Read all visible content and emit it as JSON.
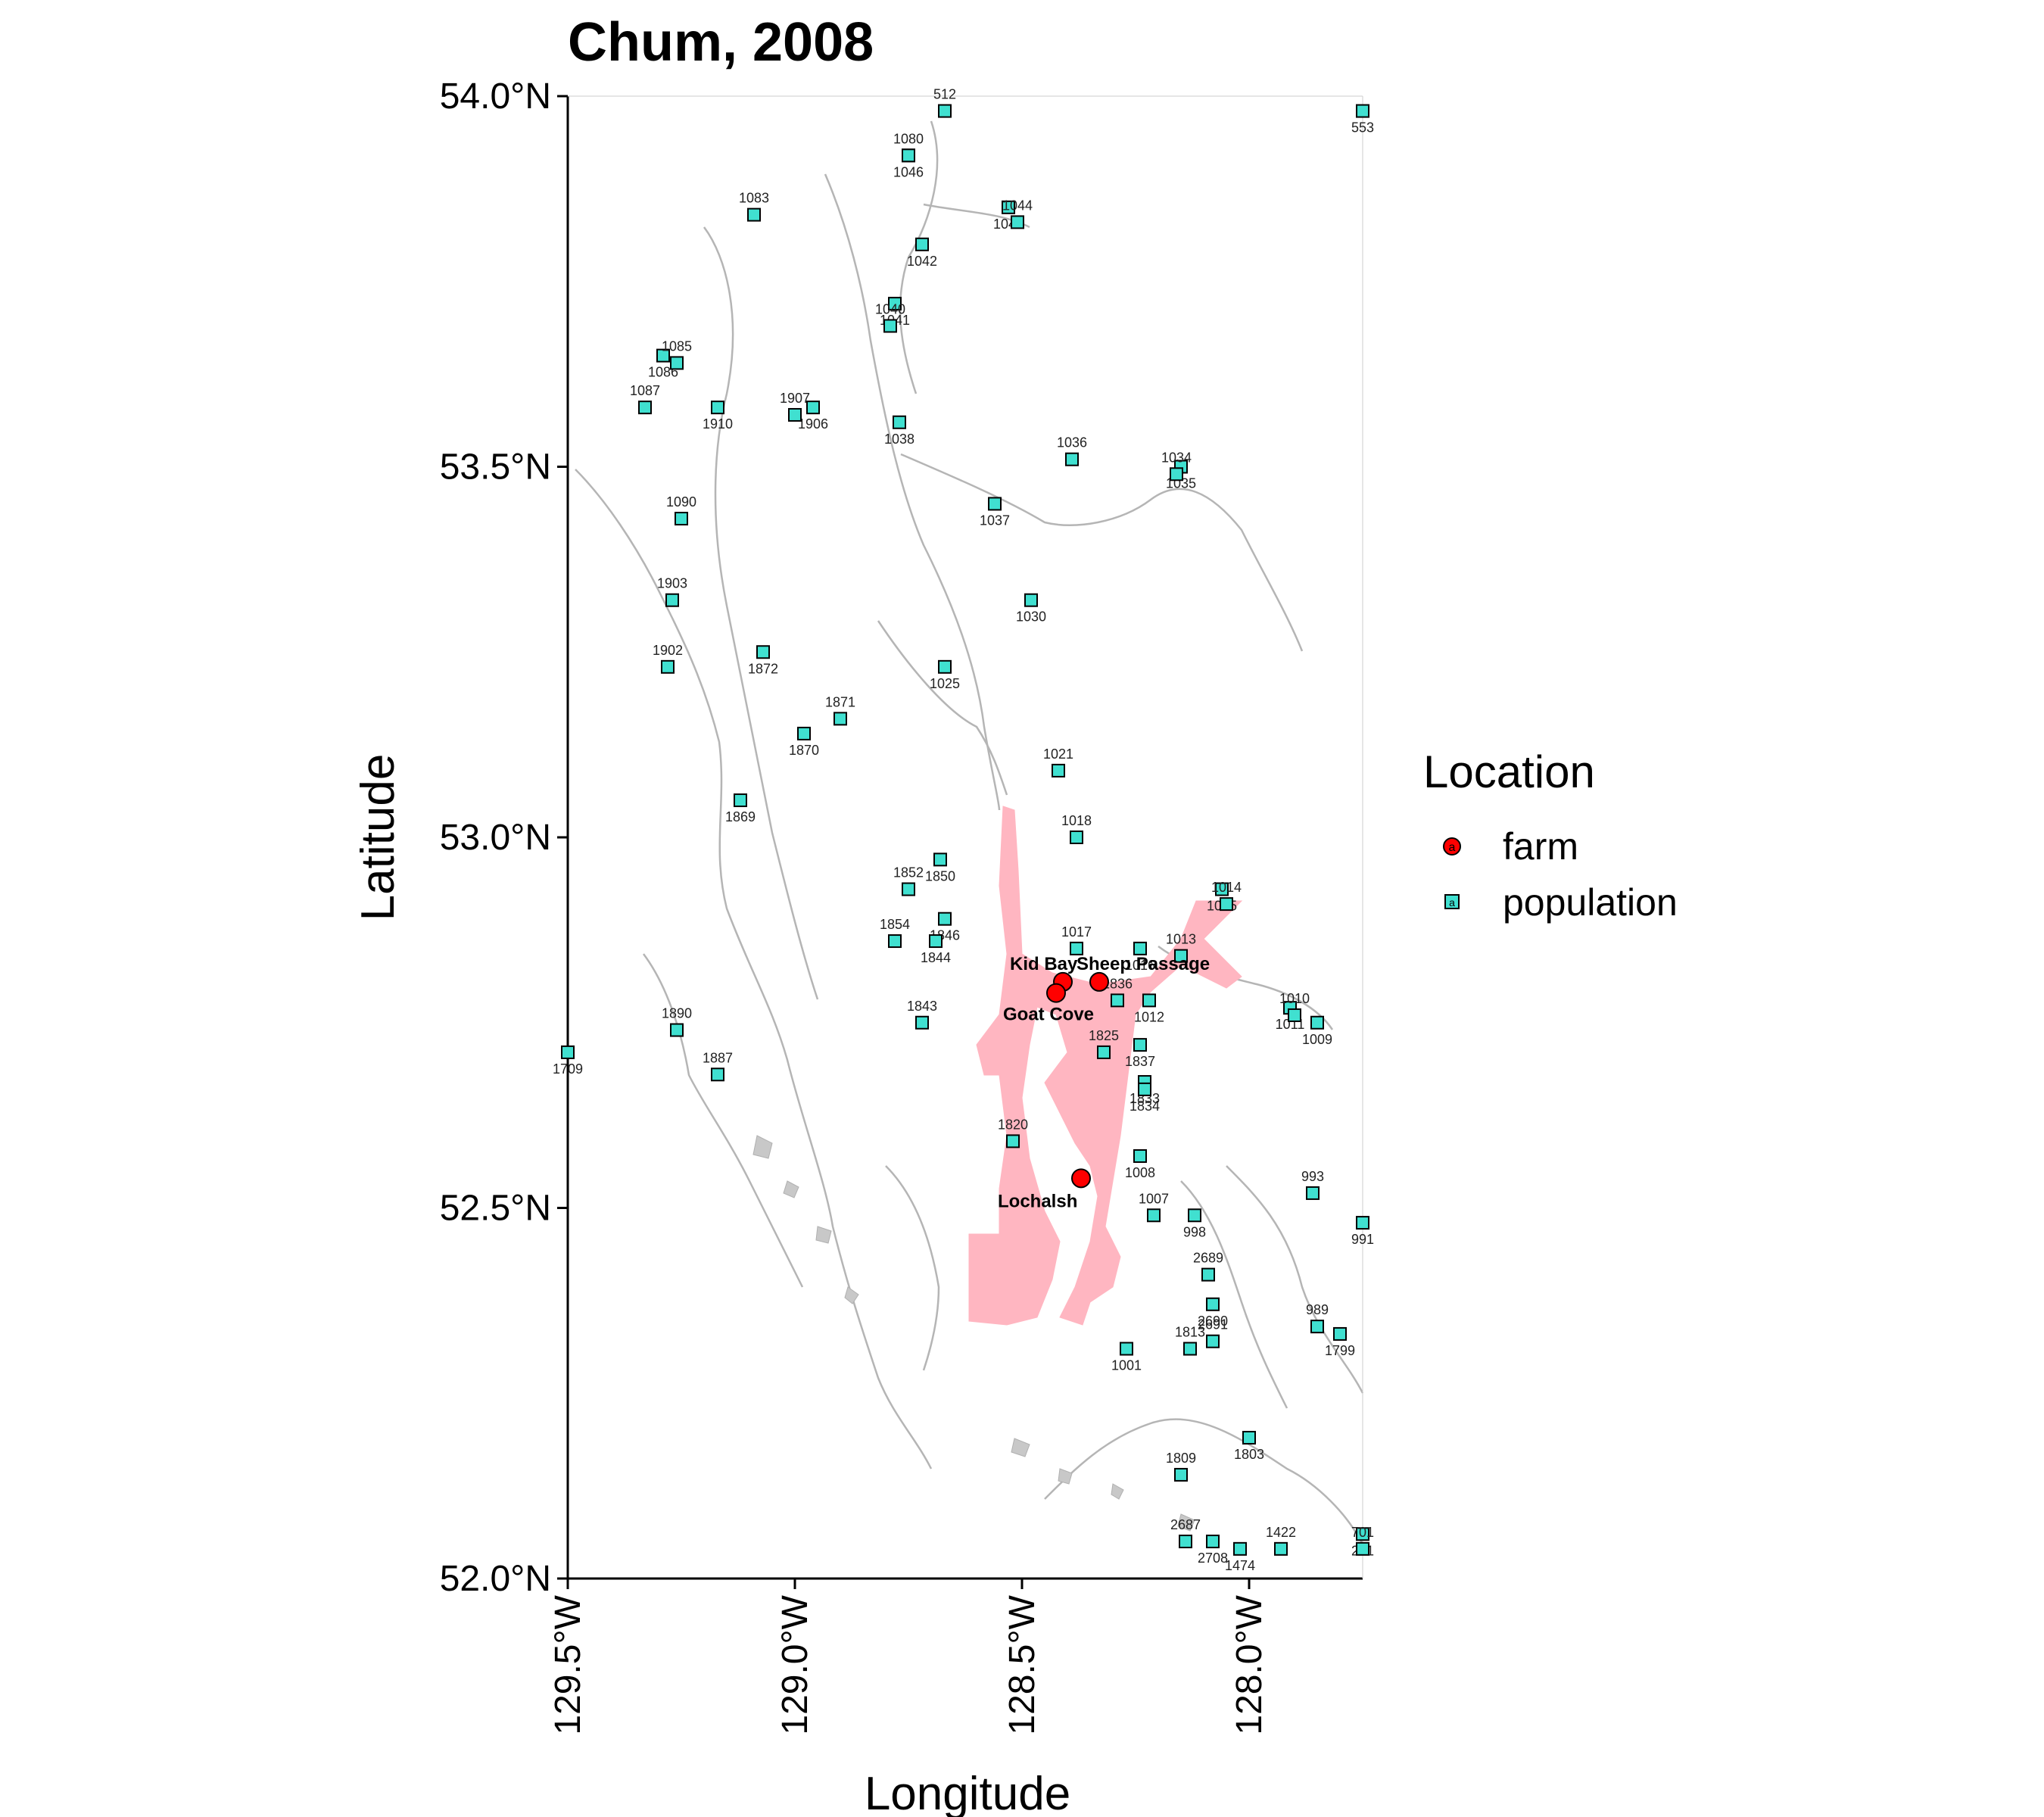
{
  "title": "Chum, 2008",
  "axes": {
    "xlabel": "Longitude",
    "ylabel": "Latitude",
    "x_ticks": [
      "129.5°W",
      "129.0°W",
      "128.5°W",
      "128.0°W"
    ],
    "y_ticks": [
      "54.0°N",
      "53.5°N",
      "53.0°N",
      "52.5°N",
      "52.0°N"
    ]
  },
  "legend": {
    "title": "Location",
    "items": [
      {
        "label": "farm",
        "symbol": "a",
        "color": "#ff0000"
      },
      {
        "label": "population",
        "symbol": "a",
        "color": "#40e0d0"
      }
    ]
  },
  "colors": {
    "farm": "#ff0000",
    "population": "#40e0d0",
    "highlight_water": "#ffb6c1",
    "coastline": "#b5b5b5"
  },
  "chart_data": {
    "type": "scatter",
    "xlim": [
      -129.5,
      -127.75
    ],
    "ylim": [
      52.0,
      54.0
    ],
    "farms": [
      {
        "name": "Kid Bay",
        "lon": -128.41,
        "lat": 52.805
      },
      {
        "name": "Sheep Passage",
        "lon": -128.33,
        "lat": 52.805
      },
      {
        "name": "Goat Cove",
        "lon": -128.425,
        "lat": 52.79
      },
      {
        "name": "Lochalsh",
        "lon": -128.37,
        "lat": 52.54
      }
    ],
    "populations": [
      {
        "id": "512",
        "lon": -128.67,
        "lat": 53.98
      },
      {
        "id": "1046",
        "lon": -128.75,
        "lat": 53.92
      },
      {
        "id": "1080",
        "lon": -128.75,
        "lat": 53.92
      },
      {
        "id": "1045",
        "lon": -128.53,
        "lat": 53.85
      },
      {
        "id": "1044",
        "lon": -128.51,
        "lat": 53.83
      },
      {
        "id": "1042",
        "lon": -128.72,
        "lat": 53.8
      },
      {
        "id": "1083",
        "lon": -129.09,
        "lat": 53.84
      },
      {
        "id": "1041",
        "lon": -128.78,
        "lat": 53.72
      },
      {
        "id": "1040",
        "lon": -128.79,
        "lat": 53.69
      },
      {
        "id": "1086",
        "lon": -129.29,
        "lat": 53.65
      },
      {
        "id": "1085",
        "lon": -129.26,
        "lat": 53.64
      },
      {
        "id": "1906",
        "lon": -128.96,
        "lat": 53.58
      },
      {
        "id": "1907",
        "lon": -129.0,
        "lat": 53.57
      },
      {
        "id": "1910",
        "lon": -129.17,
        "lat": 53.58
      },
      {
        "id": "1087",
        "lon": -129.33,
        "lat": 53.58
      },
      {
        "id": "1038",
        "lon": -128.77,
        "lat": 53.56
      },
      {
        "id": "1036",
        "lon": -128.39,
        "lat": 53.51
      },
      {
        "id": "1035",
        "lon": -128.15,
        "lat": 53.5
      },
      {
        "id": "1034",
        "lon": -128.16,
        "lat": 53.49
      },
      {
        "id": "1037",
        "lon": -128.56,
        "lat": 53.45
      },
      {
        "id": "1090",
        "lon": -129.25,
        "lat": 53.43
      },
      {
        "id": "1030",
        "lon": -128.48,
        "lat": 53.32
      },
      {
        "id": "1903",
        "lon": -129.27,
        "lat": 53.32
      },
      {
        "id": "1872",
        "lon": -129.07,
        "lat": 53.25
      },
      {
        "id": "1902",
        "lon": -129.28,
        "lat": 53.23
      },
      {
        "id": "1025",
        "lon": -128.67,
        "lat": 53.23
      },
      {
        "id": "1871",
        "lon": -128.9,
        "lat": 53.16
      },
      {
        "id": "1870",
        "lon": -128.98,
        "lat": 53.14
      },
      {
        "id": "1021",
        "lon": -128.42,
        "lat": 53.09
      },
      {
        "id": "1869",
        "lon": -129.12,
        "lat": 53.05
      },
      {
        "id": "1018",
        "lon": -128.38,
        "lat": 53.0
      },
      {
        "id": "1850",
        "lon": -128.68,
        "lat": 52.97
      },
      {
        "id": "1852",
        "lon": -128.75,
        "lat": 52.93
      },
      {
        "id": "1015",
        "lon": -128.06,
        "lat": 52.93
      },
      {
        "id": "1014",
        "lon": -128.05,
        "lat": 52.91
      },
      {
        "id": "1846",
        "lon": -128.67,
        "lat": 52.89
      },
      {
        "id": "1017",
        "lon": -128.38,
        "lat": 52.85
      },
      {
        "id": "1016",
        "lon": -128.24,
        "lat": 52.85
      },
      {
        "id": "1854",
        "lon": -128.78,
        "lat": 52.86
      },
      {
        "id": "1844",
        "lon": -128.69,
        "lat": 52.86
      },
      {
        "id": "1013",
        "lon": -128.15,
        "lat": 52.84
      },
      {
        "id": "1012",
        "lon": -128.22,
        "lat": 52.78
      },
      {
        "id": "1836",
        "lon": -128.29,
        "lat": 52.78
      },
      {
        "id": "1011",
        "lon": -127.91,
        "lat": 52.77
      },
      {
        "id": "1010",
        "lon": -127.9,
        "lat": 52.76
      },
      {
        "id": "1009",
        "lon": -127.85,
        "lat": 52.75
      },
      {
        "id": "1843",
        "lon": -128.72,
        "lat": 52.75
      },
      {
        "id": "1837",
        "lon": -128.24,
        "lat": 52.72
      },
      {
        "id": "1890",
        "lon": -129.26,
        "lat": 52.74
      },
      {
        "id": "1709",
        "lon": -129.5,
        "lat": 52.71
      },
      {
        "id": "1825",
        "lon": -128.32,
        "lat": 52.71
      },
      {
        "id": "1833",
        "lon": -128.23,
        "lat": 52.67
      },
      {
        "id": "1887",
        "lon": -129.17,
        "lat": 52.68
      },
      {
        "id": "1834",
        "lon": -128.23,
        "lat": 52.66
      },
      {
        "id": "1820",
        "lon": -128.52,
        "lat": 52.59
      },
      {
        "id": "1008",
        "lon": -128.24,
        "lat": 52.57
      },
      {
        "id": "993",
        "lon": -127.86,
        "lat": 52.52
      },
      {
        "id": "998",
        "lon": -128.12,
        "lat": 52.49
      },
      {
        "id": "1007",
        "lon": -128.21,
        "lat": 52.49
      },
      {
        "id": "991",
        "lon": -127.75,
        "lat": 52.48
      },
      {
        "id": "2689",
        "lon": -128.09,
        "lat": 52.41
      },
      {
        "id": "2690",
        "lon": -128.08,
        "lat": 52.37
      },
      {
        "id": "989",
        "lon": -127.85,
        "lat": 52.34
      },
      {
        "id": "1799",
        "lon": -127.8,
        "lat": 52.33
      },
      {
        "id": "2691",
        "lon": -128.08,
        "lat": 52.32
      },
      {
        "id": "1001",
        "lon": -128.27,
        "lat": 52.31
      },
      {
        "id": "1813",
        "lon": -128.13,
        "lat": 52.31
      },
      {
        "id": "1803",
        "lon": -128.0,
        "lat": 52.19
      },
      {
        "id": "1809",
        "lon": -128.15,
        "lat": 52.14
      },
      {
        "id": "2708",
        "lon": -128.08,
        "lat": 52.05
      },
      {
        "id": "2687",
        "lon": -128.14,
        "lat": 52.05
      },
      {
        "id": "1474",
        "lon": -128.02,
        "lat": 52.04
      },
      {
        "id": "1422",
        "lon": -127.93,
        "lat": 52.04
      },
      {
        "id": "201",
        "lon": -127.75,
        "lat": 52.06
      },
      {
        "id": "701",
        "lon": -127.75,
        "lat": 52.04
      },
      {
        "id": "553",
        "lon": -127.75,
        "lat": 53.98
      }
    ]
  }
}
